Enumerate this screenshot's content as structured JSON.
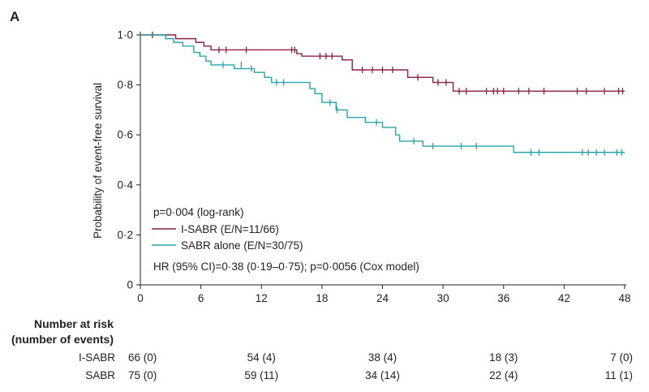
{
  "chart_data": {
    "type": "line",
    "subtype": "kaplan-meier",
    "panel_label": "A",
    "ylabel": "Probability of event-free survival",
    "xlabel": "",
    "xlim": [
      0,
      48
    ],
    "ylim": [
      0,
      1.0
    ],
    "x_ticks": [
      0,
      6,
      12,
      18,
      24,
      30,
      36,
      42,
      48
    ],
    "x_tick_labels": [
      "0",
      "6",
      "12",
      "18",
      "24",
      "30",
      "36",
      "42",
      "48"
    ],
    "y_ticks": [
      0,
      0.2,
      0.4,
      0.6,
      0.8,
      1.0
    ],
    "y_tick_labels": [
      "0",
      "0·2",
      "0·4",
      "0·6",
      "0·8",
      "1·0"
    ],
    "annotations": {
      "pvalue": "p=0·004 (log-rank)",
      "hr": "HR (95% CI)=0·38 (0·19–0·75); p=0·0056 (Cox model)"
    },
    "series": [
      {
        "name": "I-SABR (E/N=11/66)",
        "color": "#8B2040",
        "steps": [
          [
            0,
            1.0
          ],
          [
            3.5,
            0.985
          ],
          [
            5.5,
            0.97
          ],
          [
            6.3,
            0.955
          ],
          [
            7.0,
            0.94
          ],
          [
            15.5,
            0.925
          ],
          [
            16.0,
            0.915
          ],
          [
            20.0,
            0.9
          ],
          [
            21.0,
            0.86
          ],
          [
            26.5,
            0.83
          ],
          [
            29.0,
            0.81
          ],
          [
            31.0,
            0.775
          ],
          [
            48.0,
            0.775
          ]
        ],
        "censored": [
          [
            1.2,
            1.0
          ],
          [
            7.8,
            0.94
          ],
          [
            8.5,
            0.94
          ],
          [
            10.5,
            0.94
          ],
          [
            15.0,
            0.94
          ],
          [
            15.3,
            0.94
          ],
          [
            17.8,
            0.915
          ],
          [
            18.4,
            0.915
          ],
          [
            19.0,
            0.915
          ],
          [
            22.0,
            0.86
          ],
          [
            23.0,
            0.86
          ],
          [
            24.0,
            0.86
          ],
          [
            25.0,
            0.86
          ],
          [
            27.5,
            0.83
          ],
          [
            29.5,
            0.81
          ],
          [
            30.3,
            0.81
          ],
          [
            31.6,
            0.775
          ],
          [
            32.3,
            0.775
          ],
          [
            34.3,
            0.775
          ],
          [
            35.0,
            0.775
          ],
          [
            35.4,
            0.775
          ],
          [
            36.0,
            0.775
          ],
          [
            37.5,
            0.775
          ],
          [
            38.5,
            0.775
          ],
          [
            40.0,
            0.775
          ],
          [
            43.3,
            0.775
          ],
          [
            44.2,
            0.775
          ],
          [
            46.0,
            0.775
          ],
          [
            47.4,
            0.775
          ],
          [
            47.8,
            0.775
          ]
        ]
      },
      {
        "name": "SABR alone (E/N=30/75)",
        "color": "#2AA5A8",
        "steps": [
          [
            0,
            1.0
          ],
          [
            2.5,
            0.985
          ],
          [
            3.3,
            0.97
          ],
          [
            4.2,
            0.955
          ],
          [
            5.3,
            0.93
          ],
          [
            5.9,
            0.915
          ],
          [
            6.5,
            0.895
          ],
          [
            7.0,
            0.88
          ],
          [
            9.3,
            0.865
          ],
          [
            11.3,
            0.85
          ],
          [
            12.3,
            0.83
          ],
          [
            13.0,
            0.81
          ],
          [
            16.8,
            0.785
          ],
          [
            17.3,
            0.765
          ],
          [
            18.0,
            0.73
          ],
          [
            19.4,
            0.7
          ],
          [
            20.5,
            0.67
          ],
          [
            22.3,
            0.65
          ],
          [
            24.0,
            0.63
          ],
          [
            25.3,
            0.6
          ],
          [
            25.7,
            0.575
          ],
          [
            28.0,
            0.555
          ],
          [
            37.0,
            0.53
          ],
          [
            48.0,
            0.53
          ]
        ],
        "censored": [
          [
            8.2,
            0.88
          ],
          [
            10.0,
            0.88
          ],
          [
            11.0,
            0.865
          ],
          [
            13.5,
            0.81
          ],
          [
            14.2,
            0.81
          ],
          [
            18.8,
            0.73
          ],
          [
            19.5,
            0.7
          ],
          [
            23.4,
            0.65
          ],
          [
            27.1,
            0.575
          ],
          [
            29.0,
            0.555
          ],
          [
            31.8,
            0.555
          ],
          [
            33.3,
            0.555
          ],
          [
            38.7,
            0.53
          ],
          [
            39.5,
            0.53
          ],
          [
            43.8,
            0.53
          ],
          [
            44.4,
            0.53
          ],
          [
            45.2,
            0.53
          ],
          [
            46.0,
            0.53
          ],
          [
            47.2,
            0.53
          ],
          [
            47.7,
            0.53
          ]
        ]
      }
    ],
    "risk_table": {
      "title_line1": "Number at risk",
      "title_line2": "(number of events)",
      "timepoints": [
        0,
        12,
        24,
        36,
        48
      ],
      "rows": [
        {
          "label": "I-SABR",
          "values": [
            "66 (0)",
            "54 (4)",
            "38 (4)",
            "18 (3)",
            "7 (0)"
          ]
        },
        {
          "label": "SABR",
          "values": [
            "75 (0)",
            "59 (11)",
            "34 (14)",
            "22 (4)",
            "11 (1)"
          ]
        }
      ]
    }
  }
}
